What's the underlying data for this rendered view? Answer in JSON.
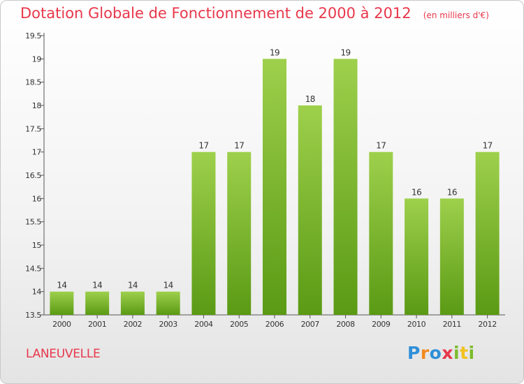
{
  "title": "Dotation Globale de Fonctionnement de 2000 à 2012",
  "subtitle": "(en milliers d'€)",
  "commune": "LANEUVELLE",
  "logo": {
    "p": "P",
    "r": "r",
    "o": "o",
    "x": "x",
    "i": "i",
    "t": "t",
    "i2": "i"
  },
  "colors": {
    "title": "#e8374b",
    "bar_light": "#9ed04c",
    "bar_dark": "#5a9a14",
    "axis": "#555555",
    "grid": "#d8d8d8"
  },
  "chart_data": {
    "type": "bar",
    "categories": [
      "2000",
      "2001",
      "2002",
      "2003",
      "2004",
      "2005",
      "2006",
      "2007",
      "2008",
      "2009",
      "2010",
      "2011",
      "2012"
    ],
    "values": [
      14,
      14,
      14,
      14,
      17,
      17,
      19,
      18,
      19,
      17,
      16,
      16,
      17
    ],
    "data_labels": [
      "14",
      "14",
      "14",
      "14",
      "17",
      "17",
      "19",
      "18",
      "19",
      "17",
      "16",
      "16",
      "17"
    ],
    "ylim": [
      13.5,
      19.5
    ],
    "yticks": [
      13.5,
      14,
      14.5,
      15,
      15.5,
      16,
      16.5,
      17,
      17.5,
      18,
      18.5,
      19,
      19.5
    ],
    "ytick_labels": [
      "13.5",
      "14",
      "14.5",
      "15",
      "15.5",
      "16",
      "16.5",
      "17",
      "17.5",
      "18",
      "18.5",
      "19",
      "19.5"
    ],
    "grid": false,
    "legend": "none",
    "xlabel": "",
    "ylabel": ""
  }
}
